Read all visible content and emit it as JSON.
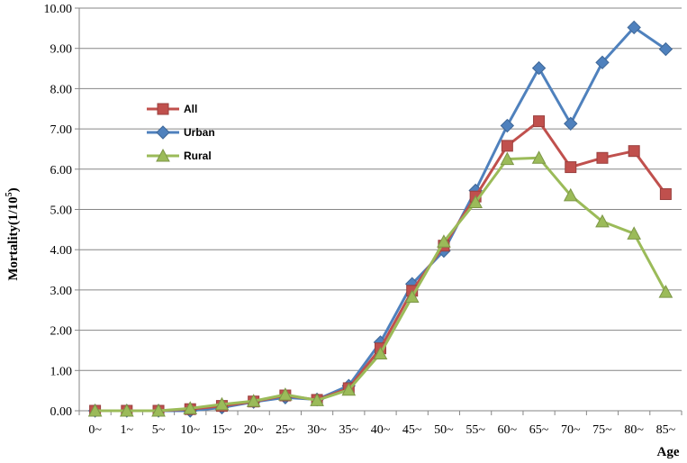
{
  "chart_data": {
    "type": "line",
    "title": "",
    "xlabel": "Age",
    "ylabel": "Mortality(1/10",
    "ylabel_superscript": "5",
    "ylabel_suffix": ")",
    "ylim": [
      0,
      10
    ],
    "yticks": [
      "0.00",
      "1.00",
      "2.00",
      "3.00",
      "4.00",
      "5.00",
      "6.00",
      "7.00",
      "8.00",
      "9.00",
      "10.00"
    ],
    "grid": true,
    "legend_position": "upper-left",
    "categories": [
      "0~",
      "1~",
      "5~",
      "10~",
      "15~",
      "20~",
      "25~",
      "30~",
      "35~",
      "40~",
      "45~",
      "50~",
      "55~",
      "60~",
      "65~",
      "70~",
      "75~",
      "80~",
      "85~"
    ],
    "series": [
      {
        "name": "Urban",
        "color": "#4F81BD",
        "marker": "diamond",
        "values": [
          0.0,
          0.0,
          0.0,
          0.0,
          0.08,
          0.22,
          0.33,
          0.28,
          0.62,
          1.7,
          3.15,
          3.97,
          5.47,
          7.08,
          8.51,
          7.13,
          8.65,
          9.52,
          8.98
        ]
      },
      {
        "name": "All",
        "color": "#C0504D",
        "marker": "square",
        "values": [
          0.0,
          0.0,
          0.0,
          0.04,
          0.12,
          0.23,
          0.38,
          0.27,
          0.56,
          1.55,
          2.98,
          4.1,
          5.32,
          6.58,
          7.19,
          6.05,
          6.28,
          6.45,
          5.38
        ]
      },
      {
        "name": "Rural",
        "color": "#9BBB59",
        "marker": "triangle",
        "values": [
          0.0,
          0.0,
          0.0,
          0.06,
          0.16,
          0.24,
          0.4,
          0.26,
          0.52,
          1.42,
          2.83,
          4.2,
          5.18,
          6.25,
          6.28,
          5.35,
          4.7,
          4.4,
          2.95
        ]
      }
    ],
    "legend_order": [
      "All",
      "Urban",
      "Rural"
    ]
  }
}
